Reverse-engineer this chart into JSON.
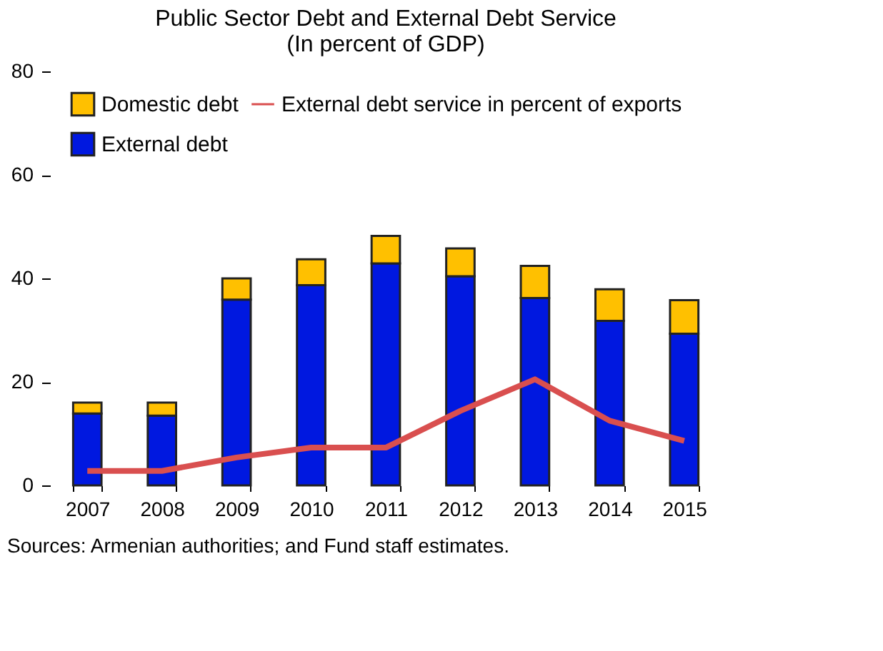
{
  "chart_data": {
    "type": "bar",
    "title": [
      "Public Sector Debt and External Debt Service",
      "(In percent of GDP)"
    ],
    "categories": [
      "2007",
      "2008",
      "2009",
      "2010",
      "2011",
      "2012",
      "2013",
      "2014",
      "2015"
    ],
    "stacked": true,
    "series": [
      {
        "name": "External debt",
        "color": "#0018e0",
        "values": [
          13.9,
          13.5,
          35.9,
          38.7,
          42.9,
          40.4,
          36.2,
          31.8,
          29.3
        ]
      },
      {
        "name": "Domestic debt",
        "color": "#ffc000",
        "values": [
          2.1,
          2.5,
          4.1,
          5.0,
          5.3,
          5.4,
          6.2,
          6.1,
          6.5
        ]
      },
      {
        "name": "External debt service in percent of exports",
        "type": "line",
        "color": "#d94f4f",
        "values": [
          2.8,
          2.8,
          5.4,
          7.3,
          7.3,
          14.4,
          20.5,
          12.5,
          8.6
        ]
      }
    ],
    "ylim": [
      0,
      80
    ],
    "yticks": [
      0,
      20,
      40,
      60,
      80
    ],
    "grid": false,
    "legend": "top left",
    "annotations": [
      "Sources: Armenian authorities; and Fund staff estimates."
    ]
  }
}
